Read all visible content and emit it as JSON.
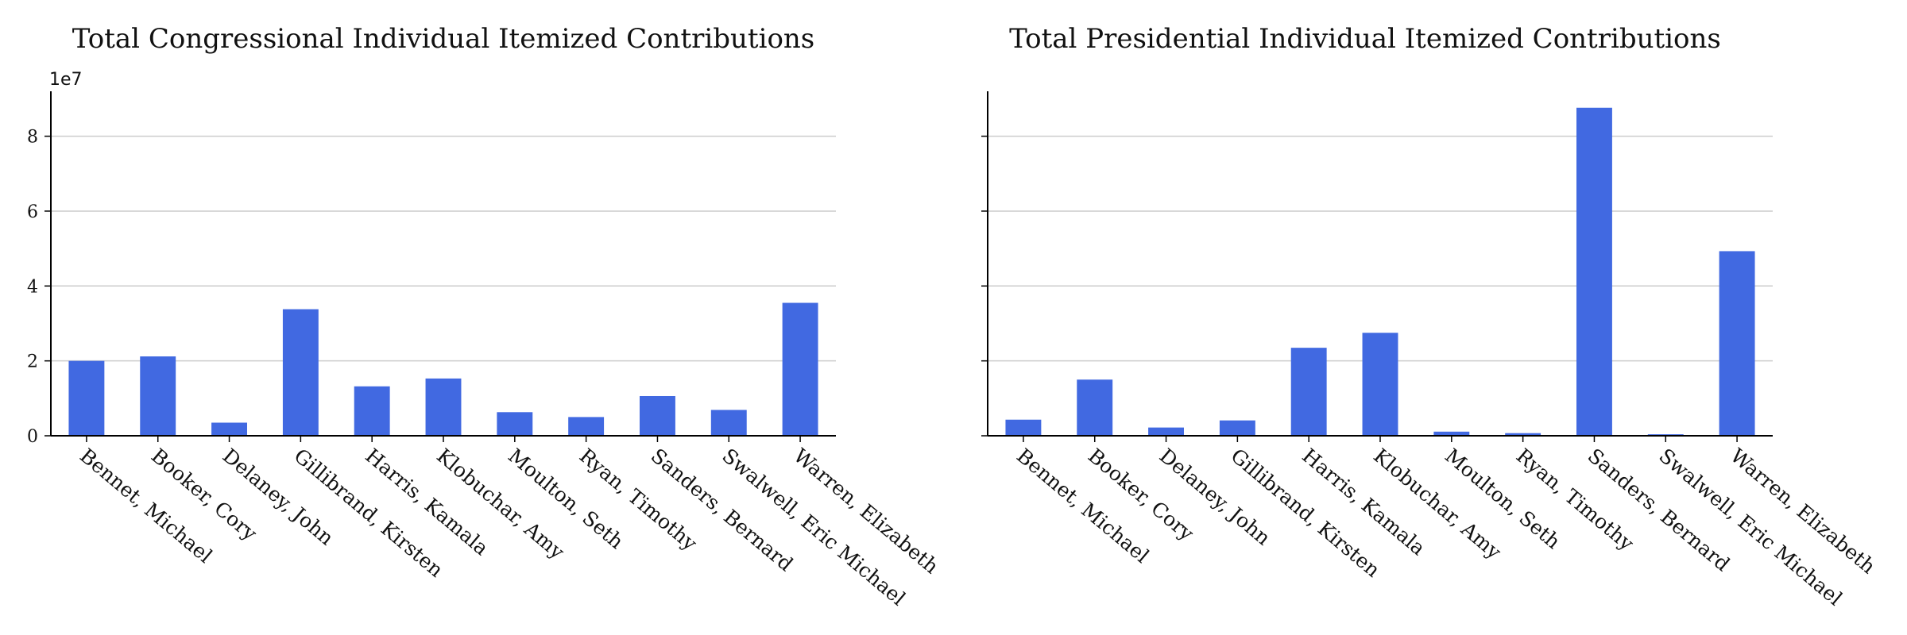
{
  "chart_data": [
    {
      "type": "bar",
      "title": "Total Congressional Individual Itemized Contributions",
      "categories": [
        "Bennet, Michael",
        "Booker, Cory",
        "Delaney, John",
        "Gillibrand, Kirsten",
        "Harris, Kamala",
        "Klobuchar, Amy",
        "Moulton, Seth",
        "Ryan, Timothy",
        "Sanders, Bernard",
        "Swalwell, Eric Michael",
        "Warren, Elizabeth"
      ],
      "values": [
        20000000,
        21200000,
        3500000,
        33800000,
        13200000,
        15300000,
        6300000,
        5000000,
        10600000,
        6900000,
        35500000
      ],
      "xlabel": "",
      "ylabel": "",
      "ylim": [
        0,
        92000000
      ],
      "yticks": [
        0,
        20000000,
        40000000,
        60000000,
        80000000
      ],
      "ytick_labels": [
        "0",
        "2",
        "4",
        "6",
        "8"
      ],
      "offset_text": "1e7",
      "grid": "y",
      "color": "#4169e1"
    },
    {
      "type": "bar",
      "title": "Total Presidential Individual Itemized Contributions",
      "categories": [
        "Bennet, Michael",
        "Booker, Cory",
        "Delaney, John",
        "Gillibrand, Kirsten",
        "Harris, Kamala",
        "Klobuchar, Amy",
        "Moulton, Seth",
        "Ryan, Timothy",
        "Sanders, Bernard",
        "Swalwell, Eric Michael",
        "Warren, Elizabeth"
      ],
      "values": [
        4300000,
        15000000,
        2200000,
        4100000,
        23500000,
        27500000,
        1100000,
        700000,
        87600000,
        400000,
        49300000
      ],
      "xlabel": "",
      "ylabel": "",
      "ylim": [
        0,
        92000000
      ],
      "yticks": [
        0,
        20000000,
        40000000,
        60000000,
        80000000
      ],
      "grid": "y",
      "color": "#4169e1"
    }
  ]
}
